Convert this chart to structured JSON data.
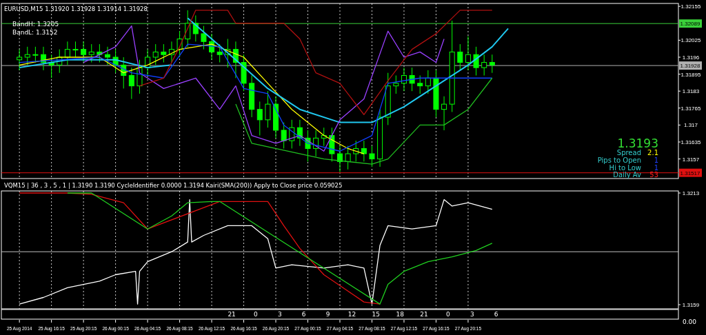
{
  "chart_data": [
    {
      "type": "candlestick",
      "title": "EURUSD,M15  1.31920 1.31928 1.31914 1.31928",
      "tick_labels": "y",
      "grid": "x",
      "xlim": [
        "2014-08-25T10:00",
        "2014-08-28T22:30"
      ],
      "ylim": [
        1.31495,
        1.32166
      ],
      "yticks": [
        1.32155,
        1.32025,
        1.3196,
        1.31895,
        1.3183,
        1.31765,
        1.317,
        1.31635,
        1.3157
      ],
      "xticks": [
        {
          "value": "2014-08-25T12:15",
          "label": null
        },
        {
          "value": "2014-08-25T16:15",
          "label": null
        },
        {
          "value": "2014-08-25T20:15",
          "label": null
        },
        {
          "value": "2014-08-26T00:15",
          "label": null
        },
        {
          "value": "2014-08-26T04:15",
          "label": null
        },
        {
          "value": "2014-08-26T08:15",
          "label": null
        },
        {
          "value": "2014-08-26T12:15",
          "label": null
        },
        {
          "value": "2014-08-26T16:15",
          "label": null
        },
        {
          "value": "2014-08-26T20:15",
          "label": null
        },
        {
          "value": "2014-08-27T00:15",
          "label": null
        },
        {
          "value": "2014-08-27T04:15",
          "label": null
        },
        {
          "value": "2014-08-27T08:15",
          "label": null
        },
        {
          "value": "2014-08-27T12:15",
          "label": null
        },
        {
          "value": "2014-08-27T16:15",
          "label": null
        },
        {
          "value": "2014-08-27T20:15",
          "label": null
        }
      ],
      "x": [
        "2014-08-25T12:15",
        "2014-08-25T13:15",
        "2014-08-25T14:15",
        "2014-08-25T15:15",
        "2014-08-25T16:15",
        "2014-08-25T17:15",
        "2014-08-25T18:15",
        "2014-08-25T19:15",
        "2014-08-25T20:15",
        "2014-08-25T21:15",
        "2014-08-25T22:15",
        "2014-08-25T23:15",
        "2014-08-26T00:15",
        "2014-08-26T01:15",
        "2014-08-26T02:15",
        "2014-08-26T03:15",
        "2014-08-26T04:15",
        "2014-08-26T05:15",
        "2014-08-26T06:15",
        "2014-08-26T07:15",
        "2014-08-26T08:15",
        "2014-08-26T09:15",
        "2014-08-26T10:15",
        "2014-08-26T11:15",
        "2014-08-26T12:15",
        "2014-08-26T13:15",
        "2014-08-26T14:15",
        "2014-08-26T15:15",
        "2014-08-26T16:15",
        "2014-08-26T17:15",
        "2014-08-26T18:15",
        "2014-08-26T19:15",
        "2014-08-26T20:15",
        "2014-08-26T21:15",
        "2014-08-26T22:15",
        "2014-08-26T23:15",
        "2014-08-27T00:15",
        "2014-08-27T01:15",
        "2014-08-27T02:15",
        "2014-08-27T03:15",
        "2014-08-27T04:15",
        "2014-08-27T05:15",
        "2014-08-27T06:15",
        "2014-08-27T07:15",
        "2014-08-27T08:15",
        "2014-08-27T09:15",
        "2014-08-27T10:15",
        "2014-08-27T11:15",
        "2014-08-27T12:15",
        "2014-08-27T13:15",
        "2014-08-27T14:15",
        "2014-08-27T15:15",
        "2014-08-27T16:15",
        "2014-08-27T17:15",
        "2014-08-27T18:15",
        "2014-08-27T19:15",
        "2014-08-27T20:15",
        "2014-08-27T21:15",
        "2014-08-27T22:15",
        "2014-08-27T23:15"
      ],
      "ohlc": [
        [
          1.3195,
          1.3199,
          1.3191,
          1.3196
        ],
        [
          1.3196,
          1.32,
          1.3193,
          1.3197
        ],
        [
          1.3197,
          1.32,
          1.3194,
          1.3197
        ],
        [
          1.3197,
          1.32,
          1.3191,
          1.3194
        ],
        [
          1.3194,
          1.3197,
          1.3188,
          1.3193
        ],
        [
          1.3193,
          1.3199,
          1.319,
          1.3196
        ],
        [
          1.3196,
          1.3202,
          1.3193,
          1.3199
        ],
        [
          1.3199,
          1.3202,
          1.3196,
          1.3199
        ],
        [
          1.3199,
          1.3202,
          1.3194,
          1.3197
        ],
        [
          1.3197,
          1.3201,
          1.3194,
          1.3198
        ],
        [
          1.3198,
          1.3201,
          1.3194,
          1.3197
        ],
        [
          1.3197,
          1.32,
          1.3193,
          1.3196
        ],
        [
          1.3196,
          1.3199,
          1.319,
          1.3193
        ],
        [
          1.3193,
          1.3196,
          1.3184,
          1.3189
        ],
        [
          1.3189,
          1.3192,
          1.318,
          1.3185
        ],
        [
          1.3185,
          1.3195,
          1.3182,
          1.3192
        ],
        [
          1.3192,
          1.3199,
          1.3189,
          1.3196
        ],
        [
          1.3196,
          1.3201,
          1.3193,
          1.3198
        ],
        [
          1.3198,
          1.3201,
          1.3194,
          1.3197
        ],
        [
          1.3197,
          1.3202,
          1.3194,
          1.3199
        ],
        [
          1.3199,
          1.3206,
          1.3196,
          1.3203
        ],
        [
          1.3203,
          1.3214,
          1.32,
          1.3209
        ],
        [
          1.3209,
          1.3212,
          1.3202,
          1.3205
        ],
        [
          1.3205,
          1.3208,
          1.3199,
          1.3202
        ],
        [
          1.3202,
          1.3205,
          1.3195,
          1.3198
        ],
        [
          1.3198,
          1.3201,
          1.3194,
          1.3197
        ],
        [
          1.3197,
          1.3203,
          1.3192,
          1.3199
        ],
        [
          1.3199,
          1.3202,
          1.3188,
          1.3194
        ],
        [
          1.3194,
          1.3197,
          1.3183,
          1.3186
        ],
        [
          1.3186,
          1.3189,
          1.3173,
          1.3176
        ],
        [
          1.3176,
          1.3179,
          1.3166,
          1.3172
        ],
        [
          1.3172,
          1.3183,
          1.3169,
          1.3178
        ],
        [
          1.3178,
          1.3181,
          1.3165,
          1.3168
        ],
        [
          1.3168,
          1.3171,
          1.3161,
          1.3164
        ],
        [
          1.3164,
          1.3172,
          1.3161,
          1.3169
        ],
        [
          1.3169,
          1.3172,
          1.3162,
          1.3165
        ],
        [
          1.3165,
          1.3168,
          1.3156,
          1.3161
        ],
        [
          1.3161,
          1.3168,
          1.3158,
          1.3165
        ],
        [
          1.3165,
          1.3169,
          1.3162,
          1.3166
        ],
        [
          1.3166,
          1.3169,
          1.3156,
          1.3159
        ],
        [
          1.3159,
          1.3162,
          1.3152,
          1.3156
        ],
        [
          1.3156,
          1.3162,
          1.3153,
          1.3159
        ],
        [
          1.3159,
          1.3164,
          1.3156,
          1.3161
        ],
        [
          1.3161,
          1.3164,
          1.3156,
          1.3159
        ],
        [
          1.3159,
          1.3162,
          1.3154,
          1.3157
        ],
        [
          1.3157,
          1.3176,
          1.3154,
          1.3173
        ],
        [
          1.3173,
          1.319,
          1.317,
          1.3185
        ],
        [
          1.3185,
          1.3189,
          1.3182,
          1.3186
        ],
        [
          1.3186,
          1.3192,
          1.3183,
          1.3189
        ],
        [
          1.3189,
          1.3192,
          1.3183,
          1.3186
        ],
        [
          1.3186,
          1.3189,
          1.3182,
          1.3185
        ],
        [
          1.3185,
          1.3191,
          1.3182,
          1.3188
        ],
        [
          1.3188,
          1.3191,
          1.3173,
          1.3176
        ],
        [
          1.3176,
          1.3181,
          1.3168,
          1.3178
        ],
        [
          1.3178,
          1.321,
          1.3175,
          1.3198
        ],
        [
          1.3198,
          1.3201,
          1.3191,
          1.3194
        ],
        [
          1.3194,
          1.3204,
          1.3191,
          1.3197
        ],
        [
          1.3197,
          1.32,
          1.3189,
          1.3192
        ],
        [
          1.3192,
          1.3197,
          1.3189,
          1.3194
        ],
        [
          1.3194,
          1.3197,
          1.319,
          1.3193
        ]
      ],
      "series": [
        {
          "type": "line",
          "color": "#ffff00",
          "x": [
            "2014-08-25T12:15",
            "2014-08-25T17:15",
            "2014-08-25T22:15",
            "2014-08-26T01:15",
            "2014-08-26T04:15",
            "2014-08-26T08:15",
            "2014-08-26T12:15",
            "2014-08-26T16:15",
            "2014-08-26T19:15",
            "2014-08-26T22:15",
            "2014-08-27T02:15",
            "2014-08-27T05:15",
            "2014-08-27T07:15"
          ],
          "values": [
            1.3193,
            1.3196,
            1.3196,
            1.319,
            1.3193,
            1.3199,
            1.3201,
            1.3196,
            1.3186,
            1.3176,
            1.3166,
            1.3161,
            1.3159
          ]
        },
        {
          "type": "line",
          "color": "#20c8f0",
          "x": [
            "2014-08-25T12:15",
            "2014-08-25T18:15",
            "2014-08-26T00:15",
            "2014-08-26T04:15",
            "2014-08-26T07:15"
          ],
          "values": [
            1.3192,
            1.3195,
            1.3195,
            1.3192,
            1.3193
          ]
        },
        {
          "type": "line",
          "color": "#20c8f0",
          "x": [
            "2014-08-26T09:15",
            "2014-08-26T12:15",
            "2014-08-26T15:15",
            "2014-08-26T19:15",
            "2014-08-26T23:15",
            "2014-08-27T04:15",
            "2014-08-27T08:15",
            "2014-08-27T12:15",
            "2014-08-27T16:15",
            "2014-08-27T20:15",
            "2014-08-27T23:15",
            "2014-08-28T01:15"
          ],
          "values": [
            1.3211,
            1.3203,
            1.3195,
            1.3184,
            1.3176,
            1.3171,
            1.3171,
            1.3177,
            1.3185,
            1.3193,
            1.32,
            1.3207
          ]
        },
        {
          "type": "line",
          "color": "#9a40ff",
          "x": [
            "2014-08-25T20:15",
            "2014-08-26T00:15",
            "2014-08-26T02:15",
            "2014-08-26T03:15",
            "2014-08-26T06:15",
            "2014-08-26T10:15",
            "2014-08-26T13:15",
            "2014-08-26T15:15",
            "2014-08-26T17:15",
            "2014-08-26T20:15",
            "2014-08-26T23:15",
            "2014-08-27T02:15",
            "2014-08-27T04:15",
            "2014-08-27T07:15",
            "2014-08-27T10:15",
            "2014-08-27T12:15",
            "2014-08-27T14:15",
            "2014-08-27T16:15",
            "2014-08-27T17:15"
          ],
          "values": [
            1.3194,
            1.32,
            1.3208,
            1.319,
            1.3184,
            1.3188,
            1.3176,
            1.3185,
            1.3166,
            1.3163,
            1.3166,
            1.316,
            1.3172,
            1.318,
            1.3206,
            1.3196,
            1.3198,
            1.3194,
            1.3203
          ]
        },
        {
          "type": "line",
          "color": "#1040ff",
          "x": [
            "2014-08-25T12:15",
            "2014-08-25T22:15",
            "2014-08-26T02:15",
            "2014-08-26T06:15",
            "2014-08-26T09:15",
            "2014-08-26T13:15",
            "2014-08-26T16:15",
            "2014-08-26T19:15",
            "2014-08-26T21:15",
            "2014-08-27T00:15",
            "2014-08-27T04:15",
            "2014-08-27T08:15",
            "2014-08-27T10:15",
            "2014-08-27T14:15",
            "2014-08-27T17:15",
            "2014-08-27T23:15"
          ],
          "values": [
            1.3194,
            1.3196,
            1.319,
            1.3188,
            1.3201,
            1.32,
            1.3184,
            1.3182,
            1.317,
            1.3163,
            1.316,
            1.3166,
            1.3186,
            1.3188,
            1.3188,
            1.3188
          ]
        },
        {
          "type": "line",
          "color": "#b01010",
          "x": [
            "2014-08-26T03:15",
            "2014-08-26T06:15",
            "2014-08-26T08:15",
            "2014-08-26T10:15",
            "2014-08-26T14:15",
            "2014-08-26T15:15",
            "2014-08-26T21:15",
            "2014-08-26T23:15",
            "2014-08-27T01:15",
            "2014-08-27T04:15",
            "2014-08-27T07:15",
            "2014-08-27T10:15",
            "2014-08-27T13:15",
            "2014-08-27T16:15",
            "2014-08-27T19:15",
            "2014-08-27T23:15"
          ],
          "values": [
            1.3185,
            1.3188,
            1.32,
            1.3214,
            1.3214,
            1.3209,
            1.3209,
            1.3203,
            1.319,
            1.3186,
            1.3174,
            1.3187,
            1.3199,
            1.3205,
            1.3214,
            1.3214
          ]
        },
        {
          "type": "line",
          "color": "#20c020",
          "x": [
            "2014-08-26T15:15",
            "2014-08-26T17:15",
            "2014-08-27T02:15",
            "2014-08-27T08:15",
            "2014-08-27T10:15",
            "2014-08-27T14:15",
            "2014-08-27T17:15",
            "2014-08-27T20:15",
            "2014-08-27T23:15"
          ],
          "values": [
            1.3178,
            1.3163,
            1.3157,
            1.3155,
            1.3157,
            1.317,
            1.317,
            1.3176,
            1.3188
          ]
        }
      ],
      "ref_lines": [
        {
          "axis": "y",
          "value": 1.32089,
          "label": "1.32089",
          "color": "#3ad13a"
        },
        {
          "axis": "y",
          "value": 1.31928,
          "label": "1.31928",
          "color": "#b0b0b0"
        },
        {
          "axis": "y",
          "value": 1.31517,
          "label": "1.31517",
          "color": "#e01010"
        }
      ],
      "annotations": [
        "BandH: 1.3205",
        "BandL: 1.3152",
        "1.3193",
        "Spread",
        "2.1",
        "Pips to Open",
        "1",
        "Hi to Low",
        "1",
        "Daily Av",
        "53"
      ]
    },
    {
      "type": "line",
      "title": "VQM15 | 36 , 3 , 5 , 1 | 1.3190 1.3190 CycleIdentifier 0.0000 1.3194 Kairi(SMA(200)) Apply to Close price 0.059025",
      "grid": "x",
      "xlim": [
        "2014-08-25T10:00",
        "2014-08-28T22:30"
      ],
      "ylim": [
        1.3157,
        1.3214
      ],
      "yticks": [
        1.3213,
        1.3159
      ],
      "xticks": [
        {
          "value": "2014-08-25T12:15",
          "label": "25 Aug 2014"
        },
        {
          "value": "2014-08-25T16:15",
          "label": "25 Aug 16:15"
        },
        {
          "value": "2014-08-25T20:15",
          "label": "25 Aug 20:15"
        },
        {
          "value": "2014-08-26T00:15",
          "label": "26 Aug 00:15"
        },
        {
          "value": "2014-08-26T04:15",
          "label": "26 Aug 04:15"
        },
        {
          "value": "2014-08-26T08:15",
          "label": "26 Aug 08:15"
        },
        {
          "value": "2014-08-26T12:15",
          "label": "26 Aug 12:15"
        },
        {
          "value": "2014-08-26T16:15",
          "label": "26 Aug 16:15"
        },
        {
          "value": "2014-08-26T20:15",
          "label": "26 Aug 20:15"
        },
        {
          "value": "2014-08-27T00:15",
          "label": "27 Aug 00:15"
        },
        {
          "value": "2014-08-27T04:15",
          "label": "27 Aug 04:15"
        },
        {
          "value": "2014-08-27T08:15",
          "label": "27 Aug 08:15"
        },
        {
          "value": "2014-08-27T12:15",
          "label": "27 Aug 12:15"
        },
        {
          "value": "2014-08-27T16:15",
          "label": "27 Aug 16:15"
        },
        {
          "value": "2014-08-27T20:15",
          "label": "27 Aug 20:15"
        }
      ],
      "x2lim": [
        "2014-08-25T10:00",
        "2014-08-28T22:30"
      ],
      "x2ticks": [
        {
          "value": "2014-08-26T14:45",
          "label": "21"
        },
        {
          "value": "2014-08-26T17:45",
          "label": "0"
        },
        {
          "value": "2014-08-26T20:45",
          "label": "3"
        },
        {
          "value": "2014-08-26T23:45",
          "label": "6"
        },
        {
          "value": "2014-08-27T02:45",
          "label": "9"
        },
        {
          "value": "2014-08-27T05:45",
          "label": "12"
        },
        {
          "value": "2014-08-27T08:45",
          "label": "15"
        },
        {
          "value": "2014-08-27T11:45",
          "label": "18"
        },
        {
          "value": "2014-08-27T14:45",
          "label": "21"
        },
        {
          "value": "2014-08-27T17:45",
          "label": "0"
        },
        {
          "value": "2014-08-27T20:45",
          "label": "3"
        },
        {
          "value": "2014-08-27T23:45",
          "label": "6"
        }
      ],
      "series": [
        {
          "color": "#ffffff",
          "x": [
            "2014-08-25T12:15",
            "2014-08-25T15:15",
            "2014-08-25T18:15",
            "2014-08-25T22:15",
            "2014-08-26T00:15",
            "2014-08-26T02:45",
            "2014-08-26T03:00",
            "2014-08-26T03:15",
            "2014-08-26T04:15",
            "2014-08-26T07:15",
            "2014-08-26T09:15",
            "2014-08-26T09:30",
            "2014-08-26T09:45",
            "2014-08-26T11:15",
            "2014-08-26T14:15",
            "2014-08-26T17:15",
            "2014-08-26T19:15",
            "2014-08-26T20:15",
            "2014-08-26T22:15",
            "2014-08-27T02:15",
            "2014-08-27T05:15",
            "2014-08-27T07:15",
            "2014-08-27T08:15",
            "2014-08-27T09:15",
            "2014-08-27T10:15",
            "2014-08-27T13:15",
            "2014-08-27T16:15",
            "2014-08-27T17:15",
            "2014-08-27T18:15",
            "2014-08-27T20:15",
            "2014-08-27T21:45",
            "2014-08-27T23:15"
          ],
          "values": [
            1.31593,
            1.31625,
            1.31672,
            1.31704,
            1.31735,
            1.31751,
            1.31593,
            1.31751,
            1.31798,
            1.31846,
            1.31893,
            1.32098,
            1.31893,
            1.31925,
            1.31972,
            1.31972,
            1.31909,
            1.31767,
            1.31783,
            1.31767,
            1.31783,
            1.31767,
            1.31593,
            1.31877,
            1.31972,
            1.31956,
            1.31972,
            1.32098,
            1.32067,
            1.32083,
            1.32067,
            1.32051
          ]
        },
        {
          "color": "#e01010",
          "x": [
            "2014-08-25T12:15",
            "2014-08-25T18:15",
            "2014-08-25T21:15",
            "2014-08-26T01:15",
            "2014-08-26T04:15",
            "2014-08-26T13:15",
            "2014-08-26T19:15",
            "2014-08-26T21:15",
            "2014-08-26T23:15",
            "2014-08-27T02:15",
            "2014-08-27T05:15",
            "2014-08-27T07:15",
            "2014-08-27T09:15"
          ],
          "values": [
            1.3213,
            1.3213,
            1.32124,
            1.32083,
            1.31956,
            1.32089,
            1.32089,
            1.31972,
            1.31862,
            1.31735,
            1.31656,
            1.31603,
            1.31593
          ]
        },
        {
          "color": "#20d020",
          "x": [
            "2014-08-25T18:15",
            "2014-08-25T21:15",
            "2014-08-26T04:15",
            "2014-08-26T07:15",
            "2014-08-26T09:15",
            "2014-08-26T12:15",
            "2014-08-26T13:15",
            "2014-08-27T09:15",
            "2014-08-27T10:15",
            "2014-08-27T12:15",
            "2014-08-27T15:15",
            "2014-08-27T18:15",
            "2014-08-27T21:15",
            "2014-08-27T23:15"
          ],
          "values": [
            1.3213,
            1.3213,
            1.31956,
            1.32019,
            1.32083,
            1.32089,
            1.32089,
            1.31593,
            1.31688,
            1.31751,
            1.31798,
            1.31821,
            1.31852,
            1.31887
          ]
        }
      ],
      "ref_lines": [
        {
          "axis": "y",
          "value": 1.31846,
          "color": "#c0c0c0"
        }
      ],
      "annotations": [
        "0.00"
      ]
    }
  ]
}
